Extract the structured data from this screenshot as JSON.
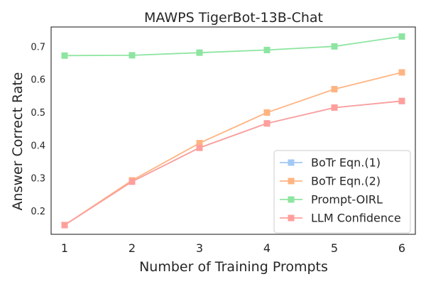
{
  "chart_data": {
    "type": "line",
    "title": "MAWPS TigerBot-13B-Chat",
    "xlabel": "Number of Training Prompts",
    "ylabel": "Answer Correct Rate",
    "x": [
      1,
      2,
      3,
      4,
      5,
      6
    ],
    "xlim": [
      0.8,
      6.2
    ],
    "ylim": [
      0.13,
      0.76
    ],
    "yticks": [
      0.2,
      0.3,
      0.4,
      0.5,
      0.6,
      0.7
    ],
    "yticks_labels": [
      "0.2",
      "0.3",
      "0.4",
      "0.5",
      "0.6",
      "0.7"
    ],
    "xticks_labels": [
      "1",
      "2",
      "3",
      "4",
      "5",
      "6"
    ],
    "grid": false,
    "legend_position": "lower-right",
    "series": [
      {
        "name": "BoTr Eqn.(1)",
        "color": "#a1c9f4",
        "values": [
          0.158,
          0.29,
          0.393,
          0.467,
          0.515,
          0.535
        ]
      },
      {
        "name": "BoTr Eqn.(2)",
        "color": "#ffb482",
        "values": [
          0.158,
          0.294,
          0.407,
          0.5,
          0.571,
          0.622
        ]
      },
      {
        "name": "Prompt-OIRL",
        "color": "#8de5a1",
        "values": [
          0.673,
          0.674,
          0.682,
          0.69,
          0.701,
          0.731
        ]
      },
      {
        "name": "LLM Confidence",
        "color": "#ff9f9b",
        "values": [
          0.158,
          0.29,
          0.393,
          0.467,
          0.515,
          0.535
        ]
      }
    ]
  }
}
